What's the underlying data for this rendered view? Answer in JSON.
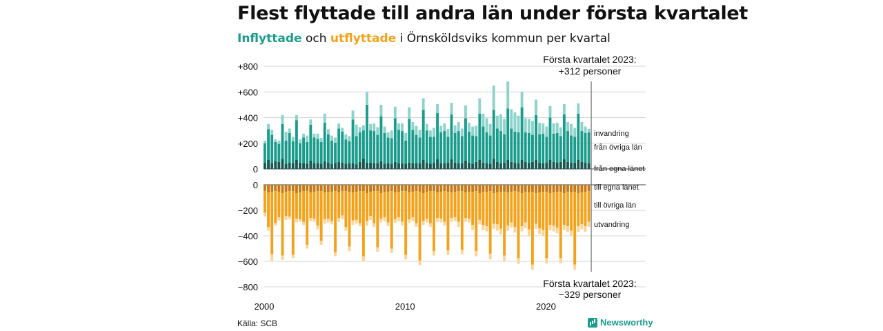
{
  "title": "Flest flyttade till andra län under första kvartalet",
  "subtitle": {
    "inflow_word": "Inflyttade",
    "and_word": "och",
    "outflow_word": "utflyttade",
    "rest": "i Örnsköldsviks kommun per kvartal"
  },
  "source": "Källa: SCB",
  "brand": "Newsworthy",
  "colors": {
    "invandring": "#8dd3cb",
    "fran_ovriga_lan": "#1a9c8c",
    "fran_egna_lanet": "#15584f",
    "till_egna_lanet": "#c87912",
    "till_ovriga_lan": "#f5a21b",
    "utvandring": "#fbd49a"
  },
  "chart_data": [
    {
      "type": "bar",
      "stacked": true,
      "title": "Inflyttade",
      "x_start": "2000 Q1",
      "x_end": "2023 Q1",
      "x_ticks": [
        "2000",
        "2010",
        "2020"
      ],
      "y_ticks": [
        "+800",
        "+600",
        "+400",
        "+200",
        "0"
      ],
      "ylim": [
        0,
        800
      ],
      "annotation": {
        "line1": "Första kvartalet 2023:",
        "line2": "+312 personer"
      },
      "series": [
        {
          "name": "från egna länet",
          "values": [
            50,
            70,
            45,
            60,
            55,
            80,
            40,
            50,
            45,
            70,
            50,
            45,
            40,
            65,
            45,
            45,
            40,
            60,
            50,
            40,
            45,
            55,
            50,
            40,
            45,
            45,
            35,
            55,
            80,
            50,
            50,
            45,
            45,
            60,
            40,
            45,
            40,
            55,
            45,
            45,
            40,
            50,
            45,
            45,
            45,
            70,
            50,
            40,
            50,
            75,
            45,
            45,
            50,
            75,
            50,
            45,
            45,
            65,
            50,
            40,
            55,
            70,
            50,
            45,
            40,
            80,
            55,
            45,
            50,
            70,
            55,
            50,
            45,
            70,
            55,
            50,
            55,
            70,
            50,
            45,
            50,
            70,
            55,
            50,
            55,
            75,
            55,
            50,
            50,
            70,
            55,
            50,
            45
          ]
        },
        {
          "name": "från övriga län",
          "values": [
            150,
            240,
            220,
            150,
            140,
            270,
            180,
            230,
            170,
            310,
            150,
            200,
            170,
            280,
            200,
            190,
            170,
            300,
            220,
            180,
            160,
            260,
            240,
            190,
            170,
            340,
            220,
            230,
            220,
            450,
            250,
            250,
            220,
            350,
            240,
            200,
            200,
            340,
            260,
            250,
            180,
            340,
            260,
            220,
            200,
            390,
            250,
            210,
            200,
            360,
            240,
            250,
            200,
            350,
            230,
            250,
            210,
            330,
            240,
            220,
            200,
            360,
            280,
            240,
            220,
            380,
            260,
            250,
            220,
            400,
            260,
            240,
            240,
            410,
            230,
            230,
            210,
            350,
            220,
            230,
            200,
            330,
            220,
            230,
            200,
            350,
            240,
            210,
            200,
            360,
            240,
            230,
            240
          ]
        },
        {
          "name": "invandring",
          "values": [
            20,
            40,
            40,
            20,
            25,
            70,
            70,
            35,
            35,
            40,
            30,
            30,
            50,
            40,
            30,
            40,
            30,
            70,
            40,
            40,
            40,
            40,
            30,
            40,
            40,
            70,
            90,
            40,
            40,
            100,
            50,
            60,
            60,
            90,
            50,
            40,
            60,
            90,
            50,
            60,
            60,
            90,
            60,
            70,
            60,
            90,
            50,
            50,
            70,
            70,
            50,
            60,
            60,
            90,
            60,
            70,
            60,
            100,
            70,
            70,
            80,
            120,
            100,
            110,
            90,
            190,
            100,
            130,
            120,
            210,
            150,
            150,
            130,
            120,
            110,
            110,
            110,
            120,
            90,
            80,
            80,
            90,
            80,
            80,
            70,
            80,
            70,
            90,
            70,
            80,
            70,
            50,
            27
          ]
        }
      ]
    },
    {
      "type": "bar",
      "stacked": true,
      "title": "Utflyttade",
      "x_start": "2000 Q1",
      "x_end": "2023 Q1",
      "x_ticks": [
        "2000",
        "2010",
        "2020"
      ],
      "y_ticks": [
        "0",
        "−200",
        "−400",
        "−600",
        "−800"
      ],
      "ylim": [
        -800,
        0
      ],
      "annotation": {
        "line1": "Första kvartalet 2023:",
        "line2": "−329 personer"
      },
      "series": [
        {
          "name": "till egna länet",
          "values": [
            -50,
            -60,
            -55,
            -50,
            -55,
            -65,
            -55,
            -50,
            -50,
            -65,
            -60,
            -50,
            -50,
            -60,
            -55,
            -50,
            -50,
            -60,
            -55,
            -55,
            -50,
            -60,
            -50,
            -50,
            -55,
            -60,
            -55,
            -50,
            -50,
            -65,
            -55,
            -50,
            -50,
            -65,
            -55,
            -55,
            -50,
            -60,
            -55,
            -50,
            -50,
            -60,
            -55,
            -50,
            -55,
            -65,
            -55,
            -50,
            -50,
            -60,
            -55,
            -50,
            -55,
            -60,
            -55,
            -50,
            -50,
            -60,
            -55,
            -55,
            -50,
            -65,
            -55,
            -55,
            -50,
            -65,
            -60,
            -55,
            -55,
            -60,
            -55,
            -50,
            -55,
            -65,
            -55,
            -60,
            -55,
            -65,
            -60,
            -55,
            -55,
            -65,
            -60,
            -55,
            -55,
            -65,
            -55,
            -60,
            -55,
            -65,
            -60,
            -55,
            -50
          ]
        },
        {
          "name": "till övriga län",
          "values": [
            -170,
            -270,
            -490,
            -250,
            -200,
            -490,
            -190,
            -200,
            -500,
            -200,
            -210,
            -240,
            -420,
            -200,
            -210,
            -270,
            -390,
            -210,
            -210,
            -230,
            -480,
            -200,
            -190,
            -280,
            -430,
            -220,
            -220,
            -250,
            -510,
            -220,
            -190,
            -250,
            -440,
            -200,
            -200,
            -240,
            -450,
            -210,
            -200,
            -240,
            -500,
            -210,
            -200,
            -250,
            -540,
            -220,
            -210,
            -250,
            -470,
            -200,
            -210,
            -240,
            -460,
            -200,
            -200,
            -240,
            -460,
            -200,
            -210,
            -260,
            -470,
            -210,
            -260,
            -270,
            -490,
            -240,
            -250,
            -290,
            -500,
            -260,
            -240,
            -280,
            -520,
            -260,
            -240,
            -290,
            -570,
            -240,
            -280,
            -300,
            -520,
            -250,
            -260,
            -280,
            -520,
            -250,
            -270,
            -300,
            -570,
            -260,
            -250,
            -270,
            -240
          ]
        },
        {
          "name": "utvandring",
          "values": [
            -30,
            -30,
            -50,
            -20,
            -25,
            -35,
            -30,
            -20,
            -25,
            -30,
            -20,
            -25,
            -30,
            -25,
            -25,
            -30,
            -30,
            -35,
            -30,
            -25,
            -30,
            -30,
            -30,
            -30,
            -35,
            -35,
            -30,
            -25,
            -40,
            -35,
            -30,
            -30,
            -35,
            -30,
            -30,
            -30,
            -35,
            -30,
            -30,
            -30,
            -35,
            -30,
            -30,
            -30,
            -35,
            -30,
            -30,
            -30,
            -35,
            -30,
            -30,
            -30,
            -35,
            -30,
            -30,
            -40,
            -35,
            -30,
            -30,
            -40,
            -40,
            -35,
            -40,
            -40,
            -45,
            -40,
            -50,
            -45,
            -45,
            -40,
            -40,
            -45,
            -45,
            -40,
            -45,
            -50,
            -40,
            -40,
            -45,
            -45,
            -40,
            -40,
            -45,
            -45,
            -40,
            -40,
            -45,
            -40,
            -40,
            -45,
            -40,
            -45,
            -39
          ]
        }
      ]
    }
  ]
}
